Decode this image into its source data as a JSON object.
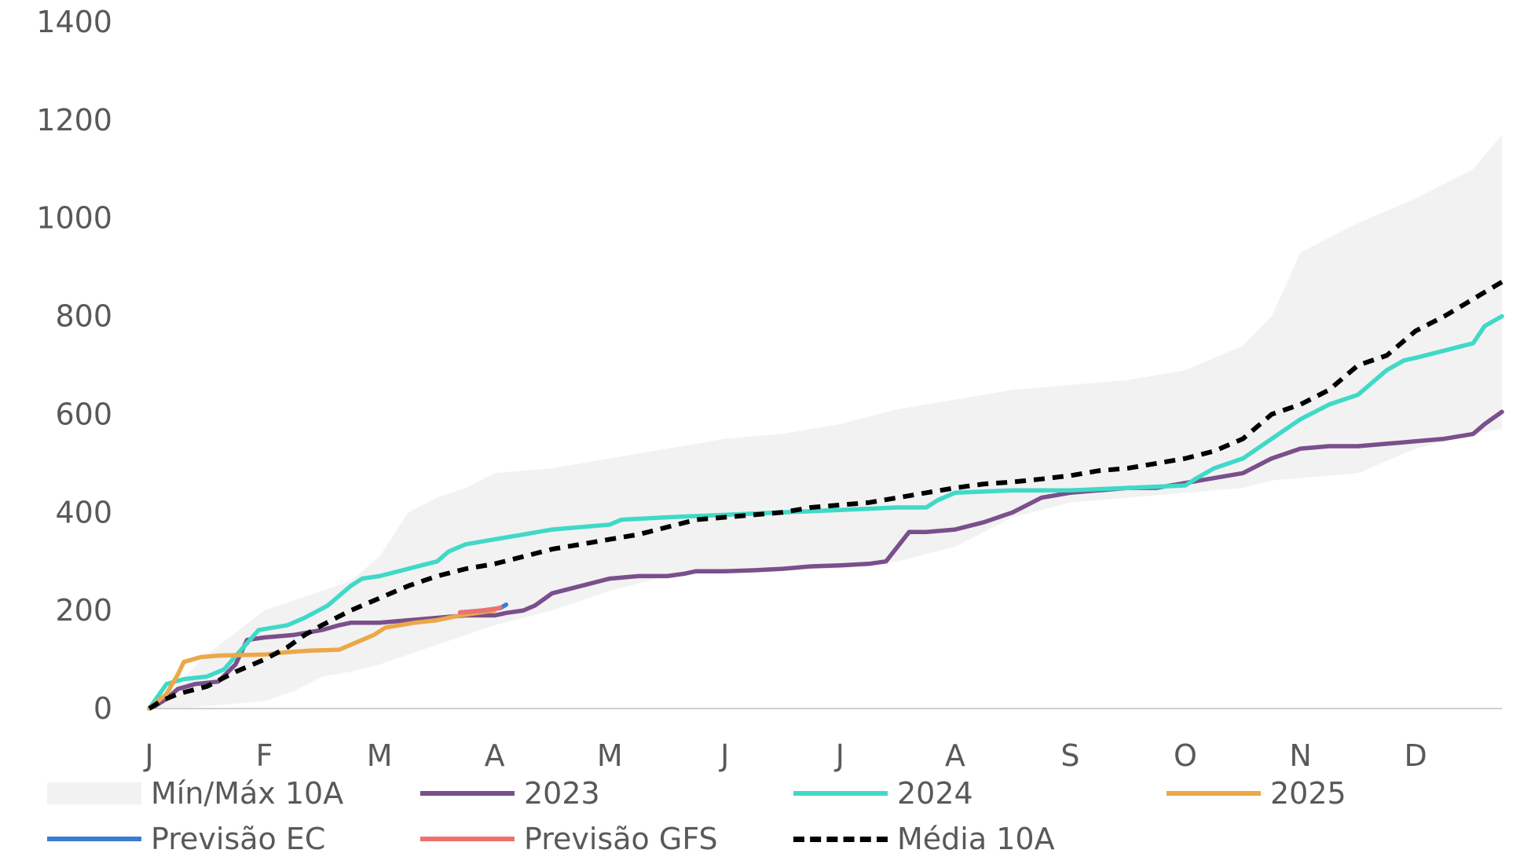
{
  "chart_data": {
    "type": "line",
    "ylim": [
      0,
      1400
    ],
    "yticks": [
      "0",
      "200",
      "400",
      "600",
      "800",
      "1000",
      "1200",
      "1400"
    ],
    "categories": [
      "J",
      "F",
      "M",
      "A",
      "M",
      "J",
      "J",
      "A",
      "S",
      "O",
      "N",
      "D"
    ],
    "x_month_start": [
      0,
      1,
      2,
      3,
      4,
      5,
      6,
      7,
      8,
      9,
      10,
      11,
      11.75
    ],
    "band": {
      "name": "Mín/Máx 10A",
      "color": "#f2f2f2",
      "x": [
        0,
        0.25,
        0.5,
        0.75,
        1.0,
        1.25,
        1.5,
        1.75,
        2.0,
        2.25,
        2.5,
        2.75,
        3.0,
        3.5,
        4.0,
        4.5,
        5.0,
        5.5,
        6.0,
        6.5,
        7.0,
        7.5,
        8.0,
        8.5,
        9.0,
        9.5,
        9.75,
        10.0,
        10.5,
        11.0,
        11.5,
        11.75
      ],
      "min": [
        0,
        0,
        5,
        10,
        15,
        35,
        65,
        75,
        90,
        110,
        130,
        150,
        170,
        200,
        240,
        270,
        280,
        285,
        285,
        300,
        330,
        390,
        420,
        430,
        440,
        450,
        465,
        470,
        480,
        530,
        560,
        570
      ],
      "max": [
        0,
        50,
        110,
        155,
        200,
        220,
        240,
        260,
        310,
        400,
        430,
        450,
        480,
        490,
        510,
        530,
        550,
        560,
        580,
        610,
        630,
        650,
        660,
        670,
        690,
        740,
        800,
        930,
        990,
        1040,
        1100,
        1170
      ]
    },
    "series": [
      {
        "name": "2023",
        "color": "#7a4f8c",
        "dashed": false,
        "x": [
          0,
          0.05,
          0.15,
          0.25,
          0.4,
          0.6,
          0.75,
          0.85,
          1.0,
          1.25,
          1.5,
          1.65,
          1.75,
          2.0,
          2.25,
          2.5,
          2.75,
          3.0,
          3.1,
          3.25,
          3.35,
          3.5,
          3.75,
          4.0,
          4.25,
          4.5,
          4.65,
          4.75,
          5.0,
          5.25,
          5.5,
          5.75,
          6.0,
          6.25,
          6.4,
          6.5,
          6.6,
          6.75,
          7.0,
          7.25,
          7.5,
          7.75,
          8.0,
          8.25,
          8.5,
          8.75,
          9.0,
          9.25,
          9.5,
          9.75,
          10.0,
          10.25,
          10.5,
          10.75,
          11.0,
          11.25,
          11.5,
          11.6,
          11.75
        ],
        "y": [
          0,
          5,
          20,
          40,
          50,
          55,
          90,
          140,
          145,
          150,
          160,
          170,
          175,
          175,
          180,
          185,
          190,
          190,
          195,
          200,
          210,
          235,
          250,
          265,
          270,
          270,
          275,
          280,
          280,
          282,
          285,
          290,
          292,
          295,
          300,
          330,
          360,
          360,
          365,
          380,
          400,
          430,
          440,
          445,
          450,
          450,
          460,
          470,
          480,
          510,
          530,
          535,
          535,
          540,
          545,
          550,
          560,
          580,
          605
        ]
      },
      {
        "name": "2024",
        "color": "#40d9c8",
        "dashed": false,
        "x": [
          0,
          0.15,
          0.3,
          0.5,
          0.65,
          0.8,
          0.95,
          1.2,
          1.35,
          1.55,
          1.75,
          1.85,
          2.0,
          2.25,
          2.5,
          2.6,
          2.75,
          3.0,
          3.25,
          3.5,
          3.75,
          4.0,
          4.1,
          4.5,
          5.0,
          5.5,
          6.0,
          6.5,
          6.75,
          6.85,
          7.0,
          7.5,
          8.0,
          8.5,
          9.0,
          9.1,
          9.25,
          9.5,
          9.75,
          10.0,
          10.25,
          10.5,
          10.75,
          10.9,
          11.0,
          11.25,
          11.5,
          11.6,
          11.75
        ],
        "y": [
          0,
          50,
          60,
          65,
          80,
          120,
          160,
          170,
          185,
          210,
          250,
          265,
          270,
          285,
          300,
          320,
          335,
          345,
          355,
          365,
          370,
          375,
          385,
          390,
          395,
          400,
          405,
          410,
          410,
          425,
          440,
          445,
          445,
          450,
          455,
          470,
          490,
          510,
          550,
          590,
          620,
          640,
          690,
          710,
          715,
          730,
          745,
          780,
          800
        ]
      },
      {
        "name": "2025",
        "color": "#eba848",
        "dashed": false,
        "x": [
          0,
          0.15,
          0.25,
          0.3,
          0.45,
          0.6,
          1.0,
          1.2,
          1.4,
          1.65,
          1.8,
          1.95,
          2.05,
          2.3,
          2.5,
          2.7,
          2.85,
          3.0
        ],
        "y": [
          0,
          30,
          70,
          95,
          105,
          108,
          110,
          115,
          118,
          120,
          135,
          150,
          165,
          175,
          180,
          190,
          195,
          200
        ]
      },
      {
        "name": "Previsão EC",
        "color": "#3d7bd6",
        "dashed": false,
        "x": [
          2.7,
          2.9,
          3.05,
          3.1
        ],
        "y": [
          196,
          200,
          205,
          212
        ]
      },
      {
        "name": "Previsão GFS",
        "color": "#f07070",
        "dashed": false,
        "x": [
          2.7,
          2.85,
          3.0,
          3.05
        ],
        "y": [
          196,
          199,
          203,
          206
        ]
      },
      {
        "name": "Média 10A",
        "color": "#000000",
        "dashed": true,
        "x": [
          0,
          0.1,
          0.25,
          0.5,
          0.75,
          1.0,
          1.2,
          1.35,
          1.5,
          1.75,
          2.0,
          2.25,
          2.5,
          2.75,
          3.0,
          3.25,
          3.5,
          3.75,
          4.0,
          4.25,
          4.5,
          4.75,
          5.0,
          5.25,
          5.5,
          5.75,
          6.0,
          6.25,
          6.5,
          6.75,
          7.0,
          7.25,
          7.5,
          7.75,
          8.0,
          8.25,
          8.5,
          8.75,
          9.0,
          9.25,
          9.5,
          9.75,
          10.0,
          10.25,
          10.5,
          10.75,
          11.0,
          11.25,
          11.5,
          11.75
        ],
        "y": [
          0,
          15,
          30,
          45,
          75,
          100,
          125,
          150,
          170,
          200,
          225,
          250,
          270,
          285,
          295,
          310,
          325,
          335,
          345,
          355,
          370,
          385,
          390,
          395,
          400,
          410,
          415,
          420,
          430,
          440,
          450,
          458,
          462,
          468,
          475,
          485,
          490,
          500,
          510,
          525,
          550,
          600,
          620,
          650,
          700,
          720,
          770,
          800,
          835,
          870
        ]
      }
    ]
  },
  "legend": {
    "items": [
      {
        "label": "Mín/Máx 10A",
        "color": "#f2f2f2",
        "kind": "band"
      },
      {
        "label": "2023",
        "color": "#7a4f8c",
        "kind": "line"
      },
      {
        "label": "2024",
        "color": "#40d9c8",
        "kind": "line"
      },
      {
        "label": "2025",
        "color": "#eba848",
        "kind": "line"
      },
      {
        "label": "Previsão EC",
        "color": "#3d7bd6",
        "kind": "line"
      },
      {
        "label": "Previsão GFS",
        "color": "#f07070",
        "kind": "line"
      },
      {
        "label": "Média 10A",
        "color": "#000000",
        "kind": "dashed"
      }
    ]
  }
}
